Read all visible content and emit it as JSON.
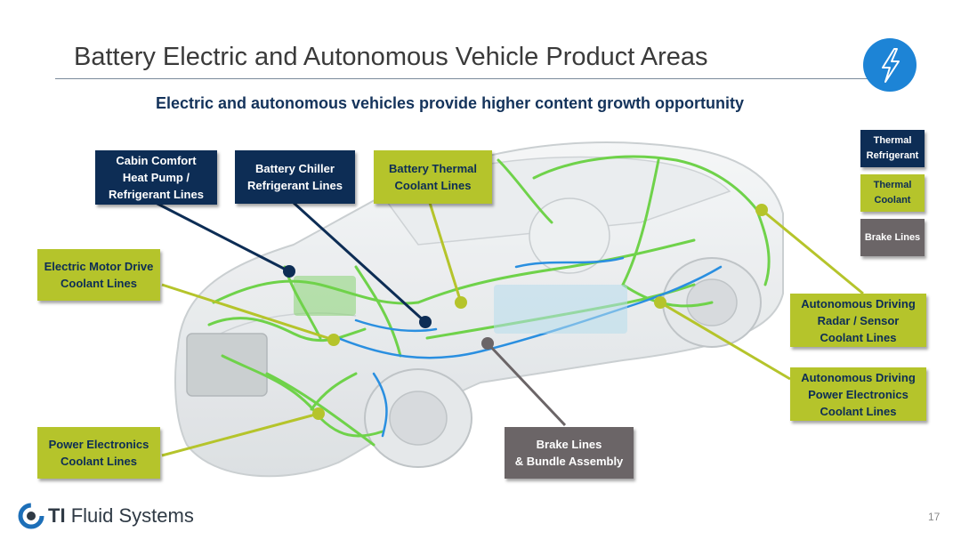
{
  "slide": {
    "title": "Battery Electric and Autonomous Vehicle Product Areas",
    "subtitle": "Electric and autonomous vehicles provide higher content growth opportunity",
    "page_number": "17"
  },
  "brand": {
    "logo_bold": "TI",
    "logo_rest": "Fluid Systems"
  },
  "colors": {
    "navy": "#0d2d55",
    "lime": "#b5c42b",
    "grey": "#6b6567",
    "green_lines": "#6fd24a",
    "blue_lines": "#2a8fe0",
    "badge_blue": "#1d84d6"
  },
  "icons": {
    "badge": "lightning-bolt-icon",
    "logo": "ti-fluid-systems-logo-icon"
  },
  "legend": [
    {
      "label": "Thermal\nRefrigerant",
      "color": "navy"
    },
    {
      "label": "Thermal\nCoolant",
      "color": "lime"
    },
    {
      "label": "Brake Lines",
      "color": "grey"
    }
  ],
  "callouts": {
    "cabin_comfort": "Cabin Comfort\nHeat Pump /\nRefrigerant Lines",
    "battery_chiller": "Battery Chiller\nRefrigerant Lines",
    "battery_thermal": "Battery Thermal\nCoolant Lines",
    "electric_motor": "Electric Motor Drive\nCoolant Lines",
    "power_electronics": "Power Electronics\nCoolant Lines",
    "brake_lines": "Brake Lines\n& Bundle Assembly",
    "ad_radar": "Autonomous Driving\nRadar / Sensor\nCoolant  Lines",
    "ad_power": "Autonomous Driving\nPower Electronics\nCoolant Lines"
  }
}
